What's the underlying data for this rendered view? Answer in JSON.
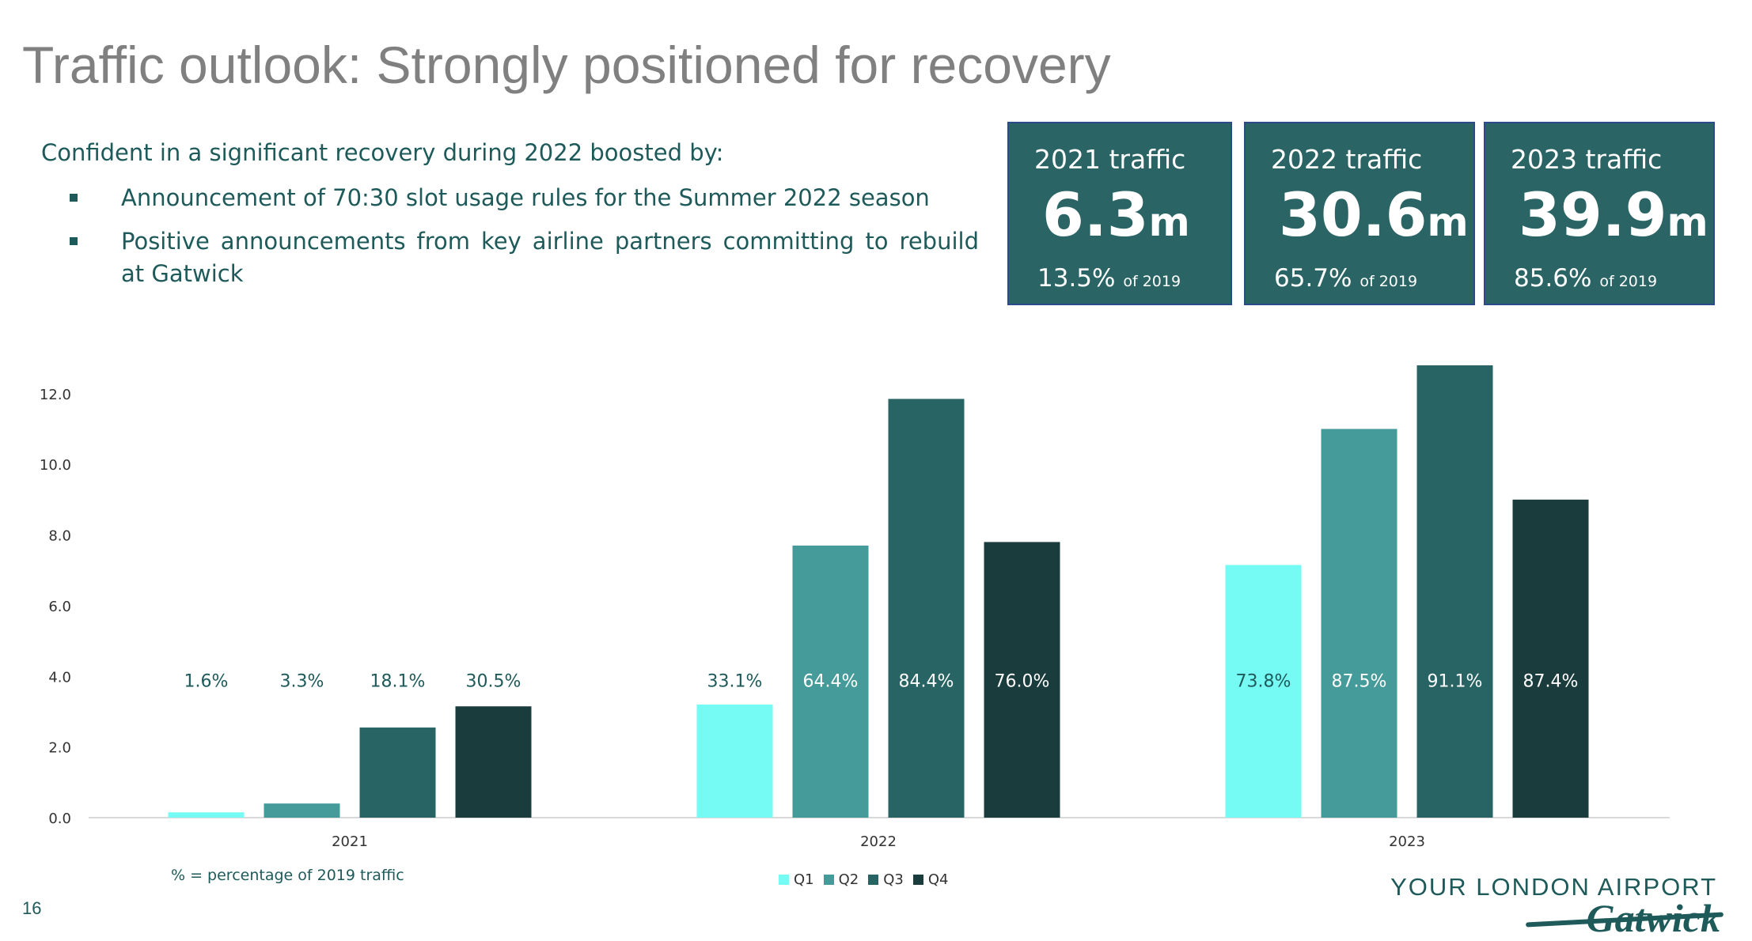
{
  "slide": {
    "title": "Traffic outlook: Strongly positioned for recovery",
    "page_number": "16"
  },
  "intro": {
    "heading": "Confident in a significant recovery during 2022 boosted by:",
    "bullets": [
      "Announcement of 70:30 slot usage rules for the Summer 2022 season",
      "Positive announcements from key airline partners committing to rebuild at Gatwick"
    ]
  },
  "kpis": [
    {
      "label": "2021 traffic",
      "value": "6.3",
      "unit": "m",
      "pct": "13.5%",
      "of": "of 2019"
    },
    {
      "label": "2022 traffic",
      "value": "30.6",
      "unit": "m",
      "pct": "65.7%",
      "of": "of 2019"
    },
    {
      "label": "2023 traffic",
      "value": "39.9",
      "unit": "m",
      "pct": "85.6%",
      "of": "of 2019"
    }
  ],
  "chart_data": {
    "type": "bar",
    "categories": [
      "2021",
      "2022",
      "2023"
    ],
    "series": [
      {
        "name": "Q1",
        "values": [
          0.15,
          3.2,
          7.15
        ],
        "labels": [
          "1.6%",
          "33.1%",
          "73.8%"
        ]
      },
      {
        "name": "Q2",
        "values": [
          0.4,
          7.7,
          11.0
        ],
        "labels": [
          "3.3%",
          "64.4%",
          "87.5%"
        ]
      },
      {
        "name": "Q3",
        "values": [
          2.55,
          11.85,
          12.8
        ],
        "labels": [
          "18.1%",
          "84.4%",
          "91.1%"
        ]
      },
      {
        "name": "Q4",
        "values": [
          3.15,
          7.8,
          9.0
        ],
        "labels": [
          "30.5%",
          "76.0%",
          "87.4%"
        ]
      }
    ],
    "colors": [
      "#75faf4",
      "#459b99",
      "#296465",
      "#1a3c3d"
    ],
    "label_colors": [
      [
        "#1e5a5a",
        "#1e5a5a",
        "#1e5a5a"
      ],
      [
        "#1e5a5a",
        "#ffffff",
        "#ffffff"
      ],
      [
        "#1e5a5a",
        "#ffffff",
        "#ffffff"
      ],
      [
        "#1e5a5a",
        "#ffffff",
        "#ffffff"
      ]
    ],
    "label_value": 3.9,
    "yticks": [
      "0.0",
      "2.0",
      "4.0",
      "6.0",
      "8.0",
      "10.0",
      "12.0"
    ],
    "ylim": [
      0,
      12.8
    ],
    "grid": false,
    "legend": "bottom-center"
  },
  "footnote": "% = percentage  of 2019 traffic",
  "branding": {
    "tagline": "YOUR LONDON AIRPORT",
    "name": "Gatwick",
    "accent": "#1e5a5a"
  }
}
